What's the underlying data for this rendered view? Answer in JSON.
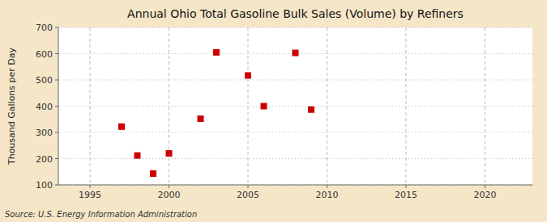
{
  "chart_data": {
    "type": "scatter",
    "title": "Annual Ohio Total Gasoline Bulk Sales (Volume) by Refiners",
    "y_label": "Thousand Gallons per Day",
    "annotation": "Source: U.S. Energy Information Administration",
    "x": [
      1997,
      1998,
      1999,
      2000,
      2002,
      2003,
      2005,
      2006,
      2008,
      2009
    ],
    "values": [
      322,
      212,
      143,
      220,
      352,
      605,
      517,
      400,
      603,
      387
    ],
    "color": "#cc0000",
    "marker": "square",
    "xlim": [
      1993,
      2023
    ],
    "ylim": [
      100,
      700
    ],
    "xticks": [
      1995,
      2000,
      2005,
      2010,
      2015,
      2020
    ],
    "yticks": [
      100,
      200,
      300,
      400,
      500,
      600,
      700
    ],
    "grid": true
  }
}
